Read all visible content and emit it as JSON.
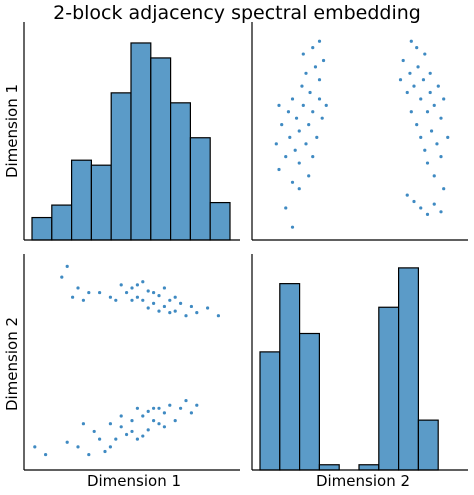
{
  "title": "2-block adjacency spectral embedding",
  "labels": {
    "row1": "Dimension 1",
    "row2": "Dimension 2",
    "col1": "Dimension 1",
    "col2": "Dimension 2"
  },
  "colors": {
    "bar_fill": "#5b9bc8",
    "bar_edge": "#000000",
    "point": "#3f8ac2",
    "axis": "#000000"
  },
  "chart_data": [
    {
      "type": "bar",
      "panel": "dimension-1-histogram",
      "bins": 10,
      "values": [
        9,
        14,
        32,
        30,
        59,
        79,
        73,
        55,
        41,
        15
      ],
      "ylim": [
        0,
        85
      ],
      "grid": false
    },
    {
      "type": "scatter",
      "panel": "dimension-2-vs-dimension-1",
      "x_var": "Dimension 1",
      "y_var": "Dimension 2",
      "series": [
        {
          "values": [
            [
              -0.9,
              -0.55
            ],
            [
              -0.8,
              -0.6
            ],
            [
              -0.6,
              -0.52
            ],
            [
              -0.5,
              -0.55
            ],
            [
              -0.4,
              -0.6
            ],
            [
              -0.35,
              -0.45
            ],
            [
              -0.3,
              -0.5
            ],
            [
              -0.25,
              -0.58
            ],
            [
              -0.2,
              -0.4
            ],
            [
              -0.15,
              -0.5
            ],
            [
              -0.1,
              -0.42
            ],
            [
              -0.05,
              -0.47
            ],
            [
              0.0,
              -0.38
            ],
            [
              0.05,
              -0.5
            ],
            [
              0.1,
              -0.35
            ],
            [
              0.15,
              -0.44
            ],
            [
              0.2,
              -0.3
            ],
            [
              0.25,
              -0.4
            ],
            [
              0.3,
              -0.33
            ],
            [
              0.35,
              -0.28
            ],
            [
              0.4,
              -0.38
            ],
            [
              0.45,
              -0.3
            ],
            [
              0.5,
              -0.25
            ],
            [
              0.55,
              -0.33
            ],
            [
              0.6,
              -0.28
            ],
            [
              -0.45,
              -0.4
            ],
            [
              -0.2,
              -0.55
            ],
            [
              0.0,
              -0.45
            ],
            [
              0.1,
              -0.48
            ],
            [
              0.2,
              -0.38
            ],
            [
              0.3,
              -0.42
            ],
            [
              0.15,
              -0.32
            ],
            [
              -0.1,
              -0.35
            ],
            [
              0.05,
              -0.3
            ],
            [
              0.25,
              -0.3
            ]
          ]
        },
        {
          "values": [
            [
              -0.65,
              0.55
            ],
            [
              -0.6,
              0.62
            ],
            [
              -0.55,
              0.42
            ],
            [
              -0.5,
              0.48
            ],
            [
              -0.45,
              0.4
            ],
            [
              -0.4,
              0.45
            ],
            [
              -0.3,
              0.45
            ],
            [
              -0.2,
              0.42
            ],
            [
              -0.1,
              0.5
            ],
            [
              -0.05,
              0.45
            ],
            [
              0.0,
              0.48
            ],
            [
              0.05,
              0.42
            ],
            [
              0.1,
              0.4
            ],
            [
              0.15,
              0.46
            ],
            [
              0.2,
              0.38
            ],
            [
              0.25,
              0.43
            ],
            [
              0.3,
              0.36
            ],
            [
              0.35,
              0.4
            ],
            [
              0.4,
              0.33
            ],
            [
              0.45,
              0.38
            ],
            [
              0.5,
              0.3
            ],
            [
              0.55,
              0.36
            ],
            [
              0.6,
              0.32
            ],
            [
              0.7,
              0.35
            ],
            [
              0.8,
              0.3
            ],
            [
              0.0,
              0.4
            ],
            [
              0.1,
              0.52
            ],
            [
              0.2,
              0.45
            ],
            [
              0.3,
              0.48
            ],
            [
              -0.15,
              0.4
            ],
            [
              0.4,
              0.42
            ],
            [
              0.05,
              0.5
            ],
            [
              0.15,
              0.35
            ],
            [
              0.25,
              0.33
            ],
            [
              0.35,
              0.32
            ]
          ]
        }
      ],
      "xlim": [
        -1.0,
        1.0
      ],
      "ylim": [
        -0.7,
        0.7
      ],
      "grid": false
    },
    {
      "type": "scatter",
      "panel": "dimension-1-vs-dimension-2",
      "x_var": "Dimension 2",
      "y_var": "Dimension 1",
      "series": [
        {
          "values": [
            [
              -0.62,
              0.05
            ],
            [
              -0.6,
              -0.15
            ],
            [
              -0.58,
              0.2
            ],
            [
              -0.55,
              -0.05
            ],
            [
              -0.53,
              0.3
            ],
            [
              -0.52,
              0.1
            ],
            [
              -0.5,
              -0.25
            ],
            [
              -0.5,
              0.4
            ],
            [
              -0.48,
              0.0
            ],
            [
              -0.47,
              0.25
            ],
            [
              -0.45,
              0.15
            ],
            [
              -0.45,
              -0.1
            ],
            [
              -0.43,
              0.5
            ],
            [
              -0.42,
              0.35
            ],
            [
              -0.4,
              0.05
            ],
            [
              -0.4,
              0.6
            ],
            [
              -0.38,
              0.2
            ],
            [
              -0.37,
              0.45
            ],
            [
              -0.35,
              -0.05
            ],
            [
              -0.35,
              0.3
            ],
            [
              -0.33,
              0.65
            ],
            [
              -0.32,
              0.1
            ],
            [
              -0.3,
              0.4
            ],
            [
              -0.3,
              0.55
            ],
            [
              -0.28,
              0.25
            ],
            [
              -0.27,
              0.7
            ],
            [
              -0.25,
              0.35
            ],
            [
              -0.55,
              -0.45
            ],
            [
              -0.5,
              -0.6
            ],
            [
              -0.45,
              -0.3
            ],
            [
              -0.42,
              0.75
            ],
            [
              -0.35,
              0.8
            ],
            [
              -0.3,
              0.85
            ],
            [
              -0.6,
              0.35
            ],
            [
              -0.38,
              -0.2
            ]
          ]
        },
        {
          "values": [
            [
              0.3,
              0.55
            ],
            [
              0.32,
              0.7
            ],
            [
              0.35,
              0.45
            ],
            [
              0.37,
              0.6
            ],
            [
              0.38,
              0.3
            ],
            [
              0.4,
              0.5
            ],
            [
              0.42,
              0.2
            ],
            [
              0.43,
              0.65
            ],
            [
              0.45,
              0.1
            ],
            [
              0.45,
              0.4
            ],
            [
              0.47,
              0.55
            ],
            [
              0.48,
              0.0
            ],
            [
              0.5,
              0.3
            ],
            [
              0.5,
              -0.1
            ],
            [
              0.52,
              0.45
            ],
            [
              0.53,
              0.15
            ],
            [
              0.55,
              -0.2
            ],
            [
              0.55,
              0.35
            ],
            [
              0.57,
              0.05
            ],
            [
              0.58,
              0.5
            ],
            [
              0.6,
              -0.05
            ],
            [
              0.6,
              0.25
            ],
            [
              0.62,
              -0.3
            ],
            [
              0.62,
              0.4
            ],
            [
              0.65,
              0.1
            ],
            [
              0.35,
              -0.35
            ],
            [
              0.4,
              -0.4
            ],
            [
              0.45,
              -0.45
            ],
            [
              0.5,
              -0.5
            ],
            [
              0.55,
              -0.42
            ],
            [
              0.6,
              -0.48
            ],
            [
              0.42,
              0.8
            ],
            [
              0.48,
              0.75
            ],
            [
              0.38,
              0.85
            ],
            [
              0.52,
              0.6
            ]
          ]
        }
      ],
      "xlim": [
        -0.8,
        0.8
      ],
      "ylim": [
        -0.7,
        1.0
      ],
      "grid": false
    },
    {
      "type": "bar",
      "panel": "dimension-2-histogram",
      "bins": 10,
      "values": [
        45,
        71,
        52,
        2,
        0,
        2,
        62,
        77,
        19,
        0
      ],
      "ylim": [
        0,
        80
      ],
      "grid": false
    }
  ]
}
